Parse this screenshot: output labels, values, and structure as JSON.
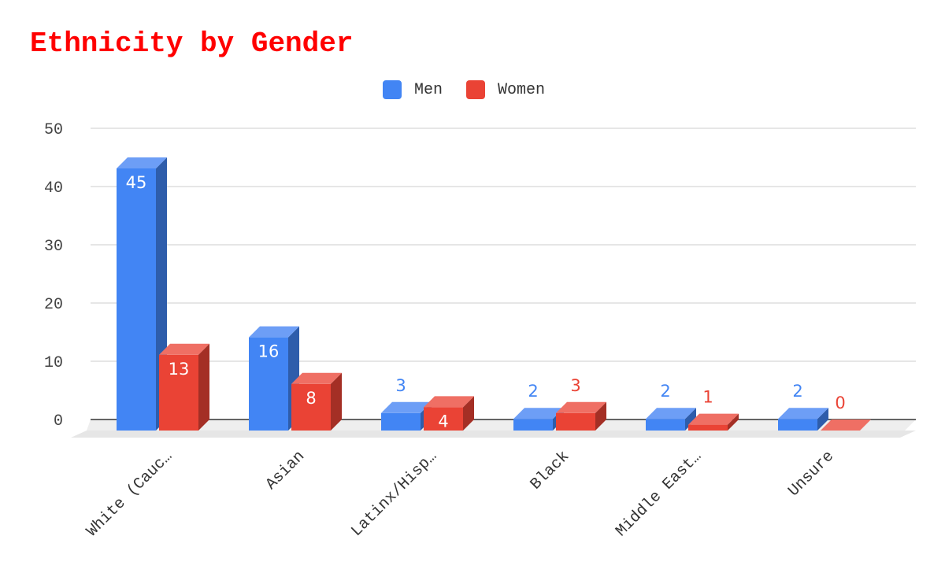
{
  "title": "Ethnicity by Gender",
  "legend": {
    "men": {
      "label": "Men",
      "color": "#4285f4"
    },
    "women": {
      "label": "Women",
      "color": "#ea4335"
    }
  },
  "chart_data": {
    "type": "bar",
    "style": "3d",
    "title": "Ethnicity by Gender",
    "categories": [
      "White (Cauc…",
      "Asian",
      "Latinx/Hisp…",
      "Black",
      "Middle East…",
      "Unsure"
    ],
    "series": [
      {
        "name": "Men",
        "color": "#4285f4",
        "side_color": "#2e5dab",
        "top_color": "#6d9ef6",
        "values": [
          45,
          16,
          3,
          2,
          2,
          2
        ]
      },
      {
        "name": "Women",
        "color": "#ea4335",
        "side_color": "#a42f25",
        "top_color": "#ef6f64",
        "values": [
          13,
          8,
          4,
          3,
          1,
          0
        ]
      }
    ],
    "ylim": [
      0,
      50
    ],
    "yticks": [
      0,
      10,
      20,
      30,
      40,
      50
    ],
    "grid": true,
    "legend_position": "top",
    "data_labels": true
  }
}
